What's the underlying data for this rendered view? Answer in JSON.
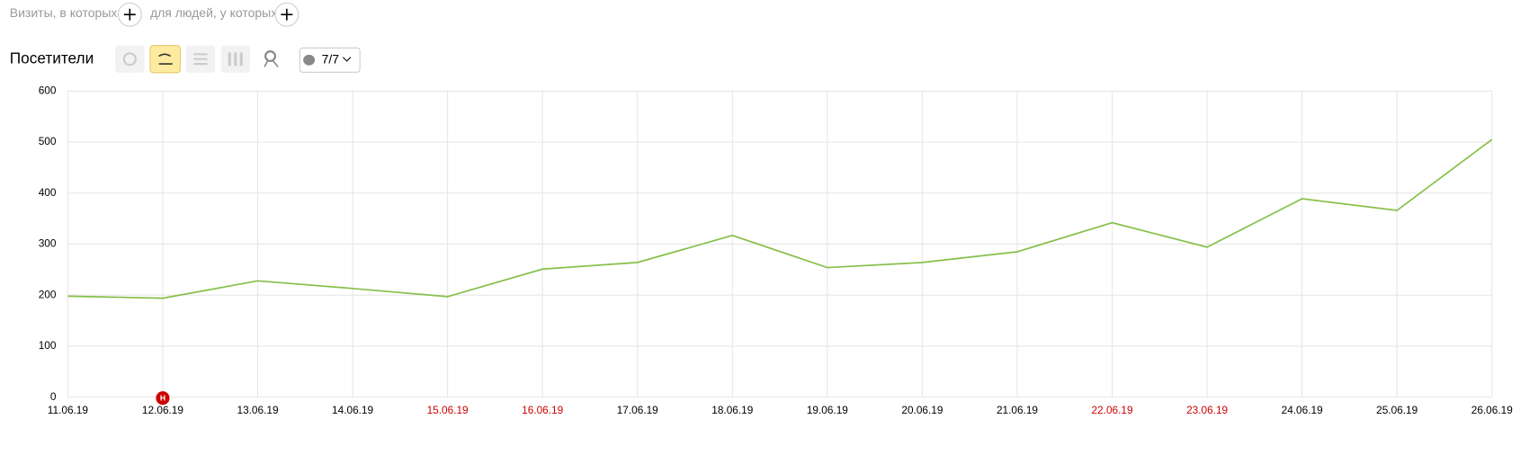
{
  "ui": {
    "filter_visits": "Визиты, в которых",
    "filter_people": "для людей, у которых",
    "section_title": "Посетители",
    "dropdown": "7/7"
  },
  "chart_data": {
    "type": "line",
    "categories": [
      "11.06.19",
      "12.06.19",
      "13.06.19",
      "14.06.19",
      "15.06.19",
      "16.06.19",
      "17.06.19",
      "18.06.19",
      "19.06.19",
      "20.06.19",
      "21.06.19",
      "22.06.19",
      "23.06.19",
      "24.06.19",
      "25.06.19",
      "26.06.19"
    ],
    "xtick_colors": [
      "#000",
      "#000",
      "#000",
      "#000",
      "#c00",
      "#c00",
      "#000",
      "#000",
      "#000",
      "#000",
      "#000",
      "#c00",
      "#c00",
      "#000",
      "#000",
      "#000"
    ],
    "series": [
      {
        "color": "#86c04a",
        "values": [
          198,
          194,
          228,
          213,
          197,
          251,
          264,
          317,
          254,
          264,
          285,
          342,
          294,
          389,
          366,
          505
        ]
      }
    ],
    "ylim": [
      0,
      600
    ],
    "yticks": [
      0,
      100,
      200,
      300,
      400,
      500,
      600
    ],
    "grid": true,
    "annotations": [
      {
        "category": "12.06.19",
        "label": "Н",
        "color": "#c00"
      }
    ]
  }
}
